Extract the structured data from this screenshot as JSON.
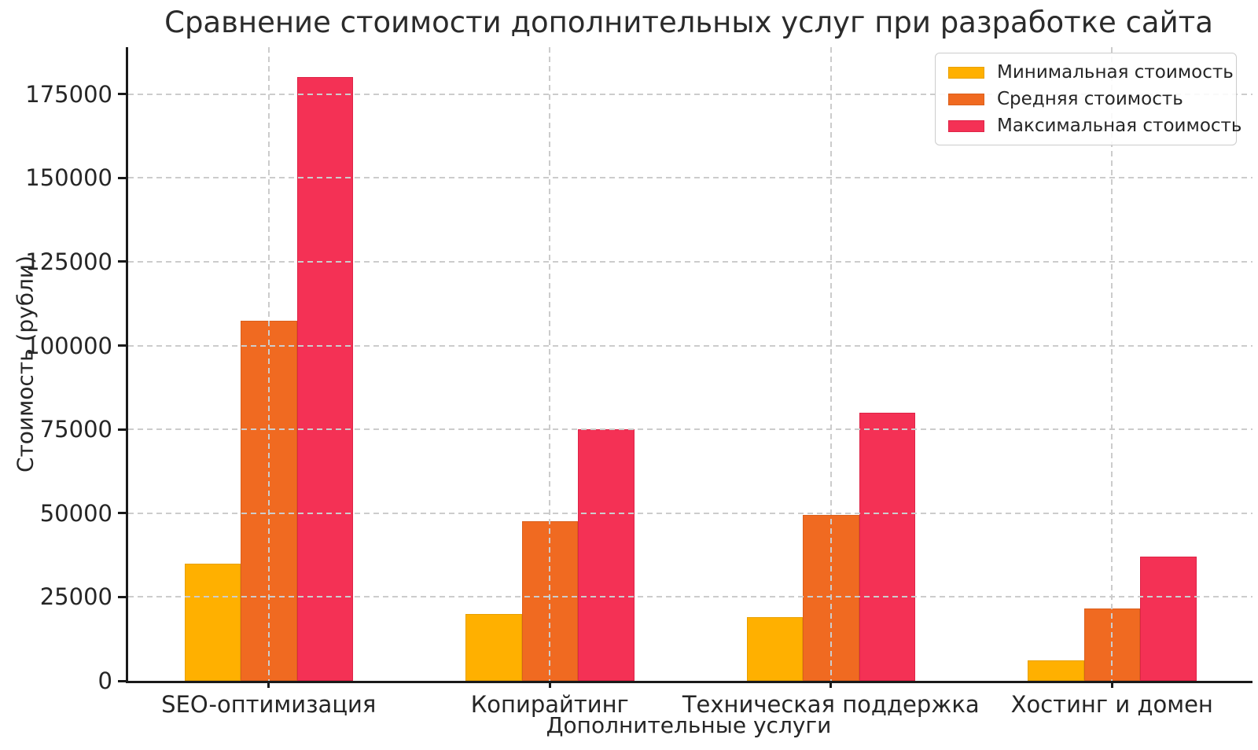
{
  "chart_data": {
    "type": "bar",
    "title": "Сравнение стоимости дополнительных услуг при разработке сайта",
    "xlabel": "Дополнительные услуги",
    "ylabel": "Стоимость (рубли)",
    "categories": [
      "SEO-оптимизация",
      "Копирайтинг",
      "Техническая поддержка",
      "Хостинг и домен"
    ],
    "series": [
      {
        "name": "Минимальная стоимость",
        "color": "#FFB000",
        "edge_color": "#E8A000",
        "values": [
          35000,
          20000,
          19000,
          6000
        ]
      },
      {
        "name": "Средняя стоимость",
        "color": "#F06A21",
        "edge_color": "#DA5F1C",
        "values": [
          107500,
          47500,
          49500,
          21500
        ]
      },
      {
        "name": "Максимальная стоимость",
        "color": "#F43155",
        "edge_color": "#DE2447",
        "values": [
          180000,
          75000,
          80000,
          37000
        ]
      }
    ],
    "yticks": [
      0,
      25000,
      50000,
      75000,
      100000,
      125000,
      150000,
      175000
    ],
    "ylim": [
      0,
      189000
    ],
    "grid": true,
    "grid_style": "dashed",
    "grid_color": "#cccccc",
    "legend_position": "upper right",
    "bar_group_width_fraction": 0.6
  }
}
